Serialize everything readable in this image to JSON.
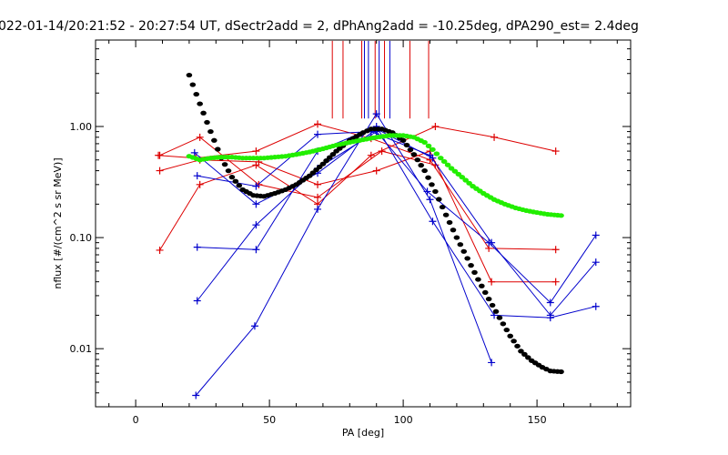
{
  "chart_data": {
    "type": "scatter",
    "title": "022-01-14/20:21:52 - 20:27:54 UT, dSectr2add = 2, dPhAng2add = -10.25deg, dPA290_est=    2.4deg",
    "xlabel": "PA [deg]",
    "ylabel": "nflux [#/(cm^2 s sr MeV)]",
    "xlim": [
      -15,
      185
    ],
    "ylim": [
      0.003,
      6
    ],
    "yscale": "log",
    "x_ticks": [
      0,
      50,
      100,
      150
    ],
    "y_ticks": [
      0.01,
      0.1,
      1.0
    ],
    "x_tick_labels": [
      "0",
      "50",
      "100",
      "150"
    ],
    "y_tick_labels": [
      "0.01",
      "0.10",
      "1.00"
    ],
    "grid": false,
    "legend": "none",
    "colors": {
      "red": "#dd0000",
      "blue": "#0000cc",
      "black": "#000000",
      "green": "#22ee00"
    },
    "reference_lines_x": [
      {
        "x": 73.5,
        "color": "red"
      },
      {
        "x": 77.5,
        "color": "red"
      },
      {
        "x": 84.5,
        "color": "red"
      },
      {
        "x": 89.5,
        "color": "red"
      },
      {
        "x": 93,
        "color": "red"
      },
      {
        "x": 102.5,
        "color": "red"
      },
      {
        "x": 109.5,
        "color": "red"
      },
      {
        "x": 85.5,
        "color": "blue"
      },
      {
        "x": 87,
        "color": "blue"
      },
      {
        "x": 91,
        "color": "blue"
      },
      {
        "x": 95,
        "color": "blue"
      }
    ],
    "reference_lines_y": [
      1.18,
      5.9
    ],
    "series": [
      {
        "color": "red",
        "points": [
          [
            8.5,
            0.55
          ],
          [
            22.5,
            0.52
          ],
          [
            45,
            0.6
          ],
          [
            68,
            1.05
          ],
          [
            88,
            0.78
          ],
          [
            110,
            0.5
          ],
          [
            132,
            0.08
          ],
          [
            157,
            0.078
          ]
        ]
      },
      {
        "color": "red",
        "points": [
          [
            9,
            0.4
          ],
          [
            24,
            0.5
          ],
          [
            46,
            0.48
          ],
          [
            68,
            0.3
          ],
          [
            90,
            0.4
          ],
          [
            110,
            0.6
          ],
          [
            133,
            0.04
          ],
          [
            157,
            0.04
          ]
        ]
      },
      {
        "color": "red",
        "points": [
          [
            9,
            0.077
          ],
          [
            24,
            0.3
          ],
          [
            45,
            0.45
          ],
          [
            68,
            0.2
          ],
          [
            88,
            0.55
          ],
          [
            112,
            1.0
          ],
          [
            134,
            0.8
          ],
          [
            157,
            0.6
          ]
        ]
      },
      {
        "color": "red",
        "points": [
          [
            9,
            0.55
          ],
          [
            24,
            0.8
          ],
          [
            46,
            0.3
          ],
          [
            68,
            0.23
          ],
          [
            92,
            0.6
          ],
          [
            112,
            0.45
          ]
        ]
      },
      {
        "color": "blue",
        "points": [
          [
            22.5,
            0.0038
          ],
          [
            44.5,
            0.016
          ],
          [
            68,
            0.18
          ],
          [
            90,
            1.3
          ],
          [
            110,
            0.22
          ],
          [
            133,
            0.0075
          ]
        ]
      },
      {
        "color": "blue",
        "points": [
          [
            23,
            0.027
          ],
          [
            45,
            0.13
          ],
          [
            68,
            0.42
          ],
          [
            90,
            0.9
          ],
          [
            109,
            0.26
          ],
          [
            132,
            0.09
          ],
          [
            155,
            0.026
          ],
          [
            172,
            0.105
          ]
        ]
      },
      {
        "color": "blue",
        "points": [
          [
            23,
            0.082
          ],
          [
            45,
            0.078
          ],
          [
            68,
            0.6
          ],
          [
            90,
            1.0
          ],
          [
            111,
            0.14
          ],
          [
            134,
            0.02
          ],
          [
            155,
            0.019
          ],
          [
            172,
            0.024
          ]
        ]
      },
      {
        "color": "blue",
        "points": [
          [
            23,
            0.36
          ],
          [
            45,
            0.29
          ],
          [
            68,
            0.85
          ],
          [
            88,
            0.9
          ],
          [
            110,
            0.55
          ],
          [
            133,
            0.09
          ],
          [
            155,
            0.02
          ],
          [
            172,
            0.06
          ]
        ]
      },
      {
        "color": "blue",
        "points": [
          [
            22,
            0.58
          ],
          [
            45,
            0.2
          ],
          [
            68,
            0.38
          ],
          [
            90,
            0.95
          ],
          [
            111,
            0.52
          ]
        ]
      }
    ],
    "dotted_curves": [
      {
        "color": "black",
        "points": [
          [
            20,
            2.9
          ],
          [
            24,
            1.6
          ],
          [
            28,
            0.9
          ],
          [
            32,
            0.52
          ],
          [
            36,
            0.35
          ],
          [
            40,
            0.27
          ],
          [
            44,
            0.24
          ],
          [
            48,
            0.235
          ],
          [
            52,
            0.25
          ],
          [
            56,
            0.27
          ],
          [
            60,
            0.3
          ],
          [
            65,
            0.36
          ],
          [
            70,
            0.46
          ],
          [
            75,
            0.6
          ],
          [
            80,
            0.75
          ],
          [
            85,
            0.88
          ],
          [
            88,
            0.95
          ],
          [
            92,
            0.95
          ],
          [
            96,
            0.88
          ],
          [
            100,
            0.75
          ],
          [
            104,
            0.56
          ],
          [
            108,
            0.4
          ],
          [
            112,
            0.26
          ],
          [
            116,
            0.16
          ],
          [
            120,
            0.1
          ],
          [
            124,
            0.065
          ],
          [
            128,
            0.042
          ],
          [
            132,
            0.028
          ],
          [
            136,
            0.019
          ],
          [
            140,
            0.013
          ],
          [
            144,
            0.0095
          ],
          [
            148,
            0.0078
          ],
          [
            152,
            0.0068
          ],
          [
            155,
            0.0063
          ],
          [
            159,
            0.0062
          ]
        ]
      },
      {
        "color": "green",
        "points": [
          [
            20,
            0.54
          ],
          [
            24,
            0.5
          ],
          [
            28,
            0.52
          ],
          [
            32,
            0.53
          ],
          [
            36,
            0.53
          ],
          [
            40,
            0.52
          ],
          [
            44,
            0.52
          ],
          [
            48,
            0.52
          ],
          [
            52,
            0.53
          ],
          [
            56,
            0.54
          ],
          [
            60,
            0.56
          ],
          [
            65,
            0.59
          ],
          [
            70,
            0.63
          ],
          [
            75,
            0.68
          ],
          [
            80,
            0.72
          ],
          [
            85,
            0.76
          ],
          [
            90,
            0.8
          ],
          [
            95,
            0.83
          ],
          [
            100,
            0.83
          ],
          [
            104,
            0.8
          ],
          [
            108,
            0.72
          ],
          [
            111,
            0.62
          ],
          [
            114,
            0.52
          ],
          [
            118,
            0.42
          ],
          [
            122,
            0.35
          ],
          [
            126,
            0.29
          ],
          [
            130,
            0.25
          ],
          [
            134,
            0.22
          ],
          [
            138,
            0.2
          ],
          [
            142,
            0.185
          ],
          [
            146,
            0.175
          ],
          [
            150,
            0.168
          ],
          [
            154,
            0.162
          ],
          [
            159,
            0.158
          ]
        ]
      }
    ]
  }
}
